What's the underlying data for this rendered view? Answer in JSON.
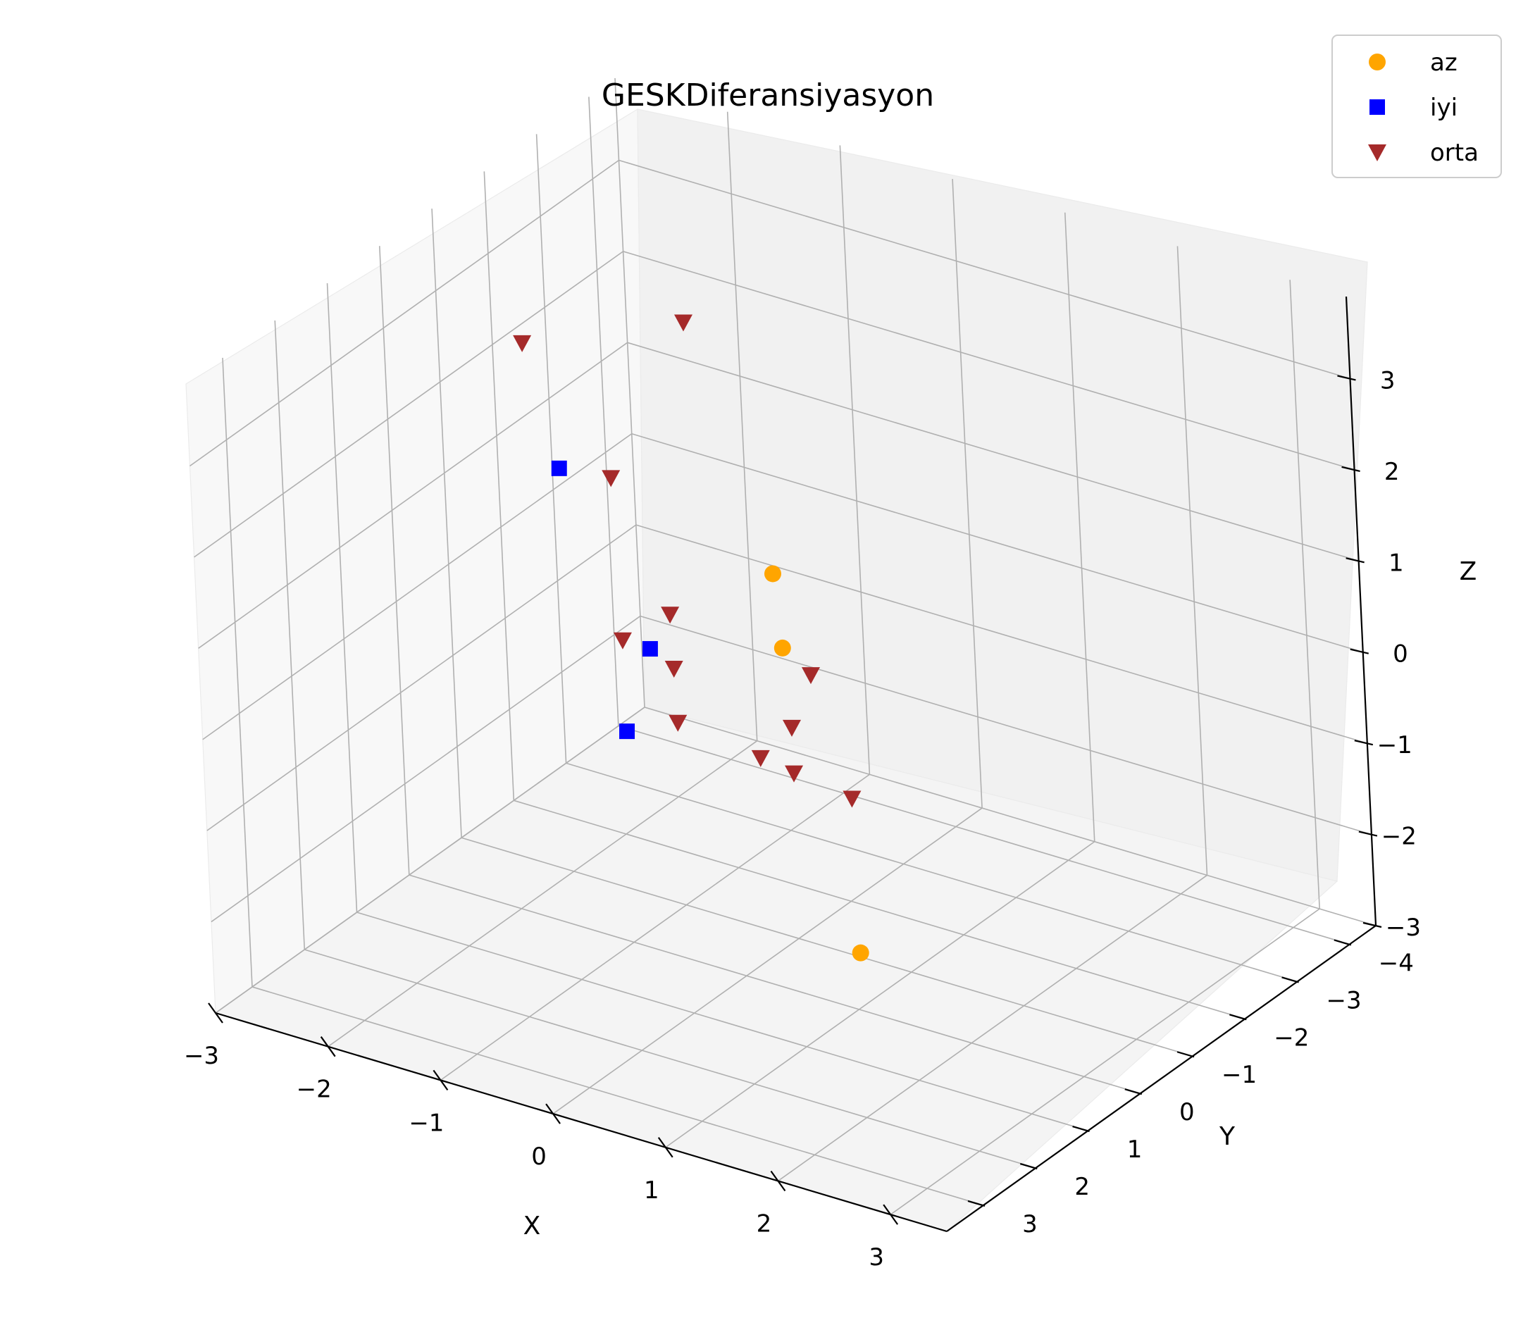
{
  "chart_data": {
    "type": "scatter",
    "projection": "3d",
    "title": "GESKDiferansiyasyon",
    "xlabel": "X",
    "ylabel": "Y",
    "zlabel": "Z",
    "xlim": [
      -3,
      3.5
    ],
    "ylim": [
      -4.5,
      3.7
    ],
    "zlim": [
      -3,
      3.9
    ],
    "xticks": [
      "−3",
      "−2",
      "−1",
      "0",
      "1",
      "2",
      "3"
    ],
    "yticks": [
      "−4",
      "−3",
      "−2",
      "−1",
      "0",
      "1",
      "2",
      "3"
    ],
    "zticks": [
      "−3",
      "−2",
      "−1",
      "0",
      "1",
      "2",
      "3"
    ],
    "grid": true,
    "legend_position": "top-right",
    "series": [
      {
        "name": "az",
        "marker": "circle",
        "color": "#ffa500",
        "points": [
          {
            "x": -1.0,
            "y": -3.0,
            "z": -1.0
          },
          {
            "x": -1.3,
            "y": -3.5,
            "z": -0.5
          },
          {
            "x": 2.5,
            "y": 3.0,
            "z": -0.6
          }
        ]
      },
      {
        "name": "iyi",
        "marker": "square",
        "color": "#0000ff",
        "points": [
          {
            "x": -0.5,
            "y": 2.0,
            "z": 3.2
          },
          {
            "x": 0.0,
            "y": 1.5,
            "z": 1.2
          },
          {
            "x": 0.0,
            "y": 2.0,
            "z": 0.5
          }
        ]
      },
      {
        "name": "orta",
        "marker": "triangle-down",
        "color": "#a52a2a",
        "points": [
          {
            "x": -2.0,
            "y": -0.5,
            "z": 3.0
          },
          {
            "x": -2.0,
            "y": -3.5,
            "z": 2.0
          },
          {
            "x": -1.5,
            "y": -1.0,
            "z": 1.5
          },
          {
            "x": 0.0,
            "y": 2.0,
            "z": 1.5
          },
          {
            "x": 1.0,
            "y": 1.0,
            "z": 0.5
          },
          {
            "x": 1.0,
            "y": 1.0,
            "z": 0.0
          },
          {
            "x": 2.0,
            "y": 2.0,
            "z": 0.5
          },
          {
            "x": -1.0,
            "y": -1.0,
            "z": -1.0
          },
          {
            "x": -1.5,
            "y": -2.0,
            "z": -1.0
          },
          {
            "x": -2.0,
            "y": -3.0,
            "z": -1.0
          },
          {
            "x": -1.0,
            "y": -3.5,
            "z": -1.5
          },
          {
            "x": -1.0,
            "y": -2.5,
            "z": -2.0
          }
        ]
      }
    ]
  }
}
